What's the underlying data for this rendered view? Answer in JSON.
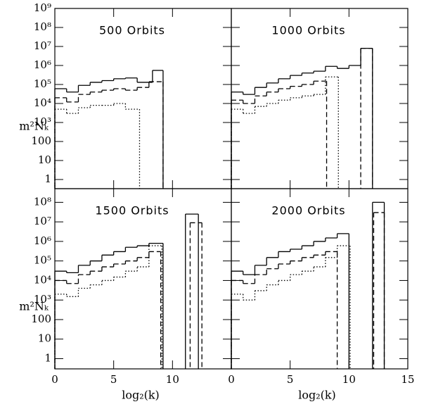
{
  "chart_data": [
    {
      "type": "histogram",
      "title": "500 Orbits",
      "ylabel": "m²Nₖ",
      "log_y": true,
      "xlim": [
        0,
        15
      ],
      "xticks": [
        0,
        5,
        10
      ],
      "ylim": [
        0.33,
        1000000000
      ],
      "yticks": [
        {
          "value": 1000000000,
          "label": "10⁹"
        },
        {
          "value": 100000000,
          "label": "10⁸"
        },
        {
          "value": 10000000,
          "label": "10⁷"
        },
        {
          "value": 1000000,
          "label": "10⁶"
        },
        {
          "value": 100000,
          "label": "10⁵"
        },
        {
          "value": 10000,
          "label": "10⁴"
        },
        {
          "value": 1000,
          "label": "10³"
        },
        100,
        10,
        1
      ],
      "series": [
        {
          "color": "#000000",
          "dash": "solid",
          "bins": [
            0,
            1,
            2,
            3,
            4,
            5,
            6,
            7,
            8.3,
            9.2
          ],
          "values": [
            60000,
            40000,
            90000,
            130000,
            160000,
            200000,
            220000,
            130000,
            550000
          ]
        },
        {
          "color": "#000000",
          "dash": "dashed",
          "bins": [
            0,
            1,
            2,
            3,
            4,
            5,
            6,
            7,
            8,
            9.2
          ],
          "values": [
            20000,
            12000,
            30000,
            40000,
            50000,
            60000,
            50000,
            70000,
            140000
          ]
        },
        {
          "color": "#000000",
          "dash": "dotted",
          "bins": [
            0,
            1,
            2,
            3,
            4,
            5,
            6,
            7.2
          ],
          "values": [
            5000,
            3000,
            6000,
            8000,
            8000,
            10000,
            5000
          ]
        }
      ]
    },
    {
      "type": "histogram",
      "title": "1000 Orbits",
      "log_y": true,
      "xlim": [
        0,
        15
      ],
      "xticks": [
        0,
        5,
        10,
        15
      ],
      "ylim": [
        0.33,
        1000000000
      ],
      "yticks": [
        1000000000,
        100000000,
        10000000,
        1000000,
        100000,
        10000,
        1000,
        100,
        10,
        1
      ],
      "series": [
        {
          "color": "#000000",
          "dash": "solid",
          "bins": [
            0,
            1,
            2,
            3,
            4,
            5,
            6,
            7,
            8,
            9,
            10,
            11,
            12
          ],
          "values": [
            40000,
            30000,
            70000,
            120000,
            200000,
            300000,
            400000,
            500000,
            900000,
            700000,
            1000000,
            8000000
          ]
        },
        {
          "color": "#000000",
          "dash": "dashed",
          "bins": [
            0,
            1,
            2,
            3,
            4,
            5,
            6,
            7,
            8.1,
            11,
            12
          ],
          "values": [
            15000,
            10000,
            25000,
            40000,
            60000,
            80000,
            100000,
            150000,
            null,
            8000000
          ]
        },
        {
          "color": "#000000",
          "dash": "dotted",
          "bins": [
            0,
            1,
            2,
            3,
            4,
            5,
            6,
            7,
            8,
            9.1
          ],
          "values": [
            5000,
            3000,
            7000,
            10000,
            15000,
            20000,
            25000,
            30000,
            250000
          ]
        }
      ]
    },
    {
      "type": "histogram",
      "title": "1500 Orbits",
      "ylabel": "m²Nₖ",
      "xlabel": "log₂(k)",
      "log_y": true,
      "xlim": [
        0,
        15
      ],
      "xticks": [
        0,
        5,
        10
      ],
      "ylim": [
        0.3,
        500000000
      ],
      "yticks": [
        {
          "value": 100000000,
          "label": "10⁸"
        },
        {
          "value": 10000000,
          "label": "10⁷"
        },
        {
          "value": 1000000,
          "label": "10⁶"
        },
        {
          "value": 100000,
          "label": "10⁵"
        },
        {
          "value": 10000,
          "label": "10⁴"
        },
        {
          "value": 1000,
          "label": "10³"
        },
        100,
        10,
        1
      ],
      "series": [
        {
          "color": "#000000",
          "dash": "solid",
          "bins": [
            0,
            1,
            2,
            3,
            4,
            5,
            6,
            7,
            8,
            9.2,
            11.1,
            12.2
          ],
          "values": [
            30000,
            25000,
            60000,
            100000,
            200000,
            300000,
            500000,
            600000,
            800000,
            null,
            25000000
          ]
        },
        {
          "color": "#000000",
          "dash": "dashed",
          "bins": [
            0,
            1,
            2,
            3,
            4,
            5,
            6,
            7,
            8,
            9,
            11.5,
            12.5
          ],
          "values": [
            10000,
            7000,
            20000,
            30000,
            50000,
            70000,
            100000,
            150000,
            300000,
            null,
            9000000
          ]
        },
        {
          "color": "#000000",
          "dash": "dotted",
          "bins": [
            0,
            1,
            2,
            3,
            4,
            5,
            6,
            7,
            8,
            9.1
          ],
          "values": [
            2000,
            1500,
            4000,
            6000,
            10000,
            15000,
            30000,
            50000,
            600000
          ]
        }
      ]
    },
    {
      "type": "histogram",
      "title": "2000 Orbits",
      "xlabel": "log₂(k)",
      "log_y": true,
      "xlim": [
        0,
        15
      ],
      "xticks": [
        0,
        5,
        10,
        15
      ],
      "ylim": [
        0.3,
        500000000
      ],
      "yticks": [
        100000000,
        10000000,
        1000000,
        100000,
        10000,
        1000,
        100,
        10,
        1
      ],
      "series": [
        {
          "color": "#000000",
          "dash": "solid",
          "bins": [
            0,
            1,
            2,
            3,
            4,
            5,
            6,
            7,
            8,
            9,
            10,
            12,
            13
          ],
          "values": [
            30000,
            20000,
            60000,
            150000,
            300000,
            400000,
            600000,
            1000000,
            1500000,
            2500000,
            null,
            100000000
          ]
        },
        {
          "color": "#000000",
          "dash": "dashed",
          "bins": [
            0,
            1,
            2,
            3,
            4,
            5,
            6,
            7,
            8,
            9,
            12.1,
            13
          ],
          "values": [
            10000,
            7000,
            20000,
            40000,
            70000,
            100000,
            150000,
            200000,
            300000,
            null,
            30000000
          ]
        },
        {
          "color": "#000000",
          "dash": "dotted",
          "bins": [
            0,
            1,
            2,
            3,
            4,
            5,
            6,
            7,
            8,
            9,
            10.1
          ],
          "values": [
            2000,
            1000,
            3000,
            6000,
            10000,
            20000,
            30000,
            50000,
            150000,
            600000
          ]
        }
      ]
    }
  ]
}
